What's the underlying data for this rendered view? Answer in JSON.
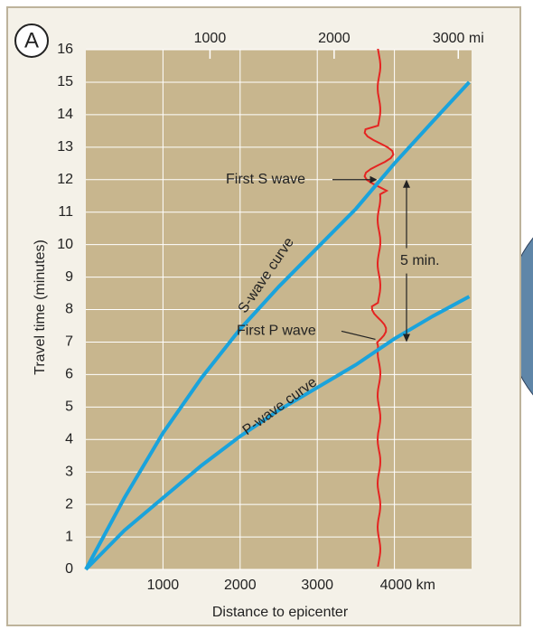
{
  "chart_data": {
    "type": "line",
    "panel_label": "A",
    "x_label": "Distance to epicenter",
    "y_label": "Travel time (minutes)",
    "x": [
      0,
      500,
      1000,
      1500,
      2000,
      2500,
      3000,
      3500,
      4000,
      4500,
      4970
    ],
    "series": [
      {
        "name": "S-wave curve",
        "color": "#1aa3dc",
        "values": [
          0,
          2.2,
          4.2,
          5.9,
          7.4,
          8.7,
          9.9,
          11.1,
          12.5,
          13.8,
          15.0
        ]
      },
      {
        "name": "P-wave curve",
        "color": "#1aa3dc",
        "values": [
          0,
          1.2,
          2.2,
          3.2,
          4.1,
          4.9,
          5.6,
          6.3,
          7.1,
          7.8,
          8.4
        ]
      }
    ],
    "xlim": [
      0,
      5000
    ],
    "xticks": [
      1000,
      2000,
      3000,
      {
        "value": 4000,
        "label": "4000 km"
      }
    ],
    "x2lim": [
      0,
      3107
    ],
    "x2ticks": [
      1000,
      2000,
      {
        "value": 3000,
        "label": "3000 mi"
      }
    ],
    "ylim": [
      0,
      16
    ],
    "yticks": [
      0,
      1,
      2,
      3,
      4,
      5,
      6,
      7,
      8,
      9,
      10,
      11,
      12,
      13,
      14,
      15,
      16
    ],
    "grid": true,
    "annotations": {
      "first_s": "First S wave",
      "first_p": "First P wave",
      "gap": "5 min."
    },
    "seismogram_color": "#e52421"
  }
}
